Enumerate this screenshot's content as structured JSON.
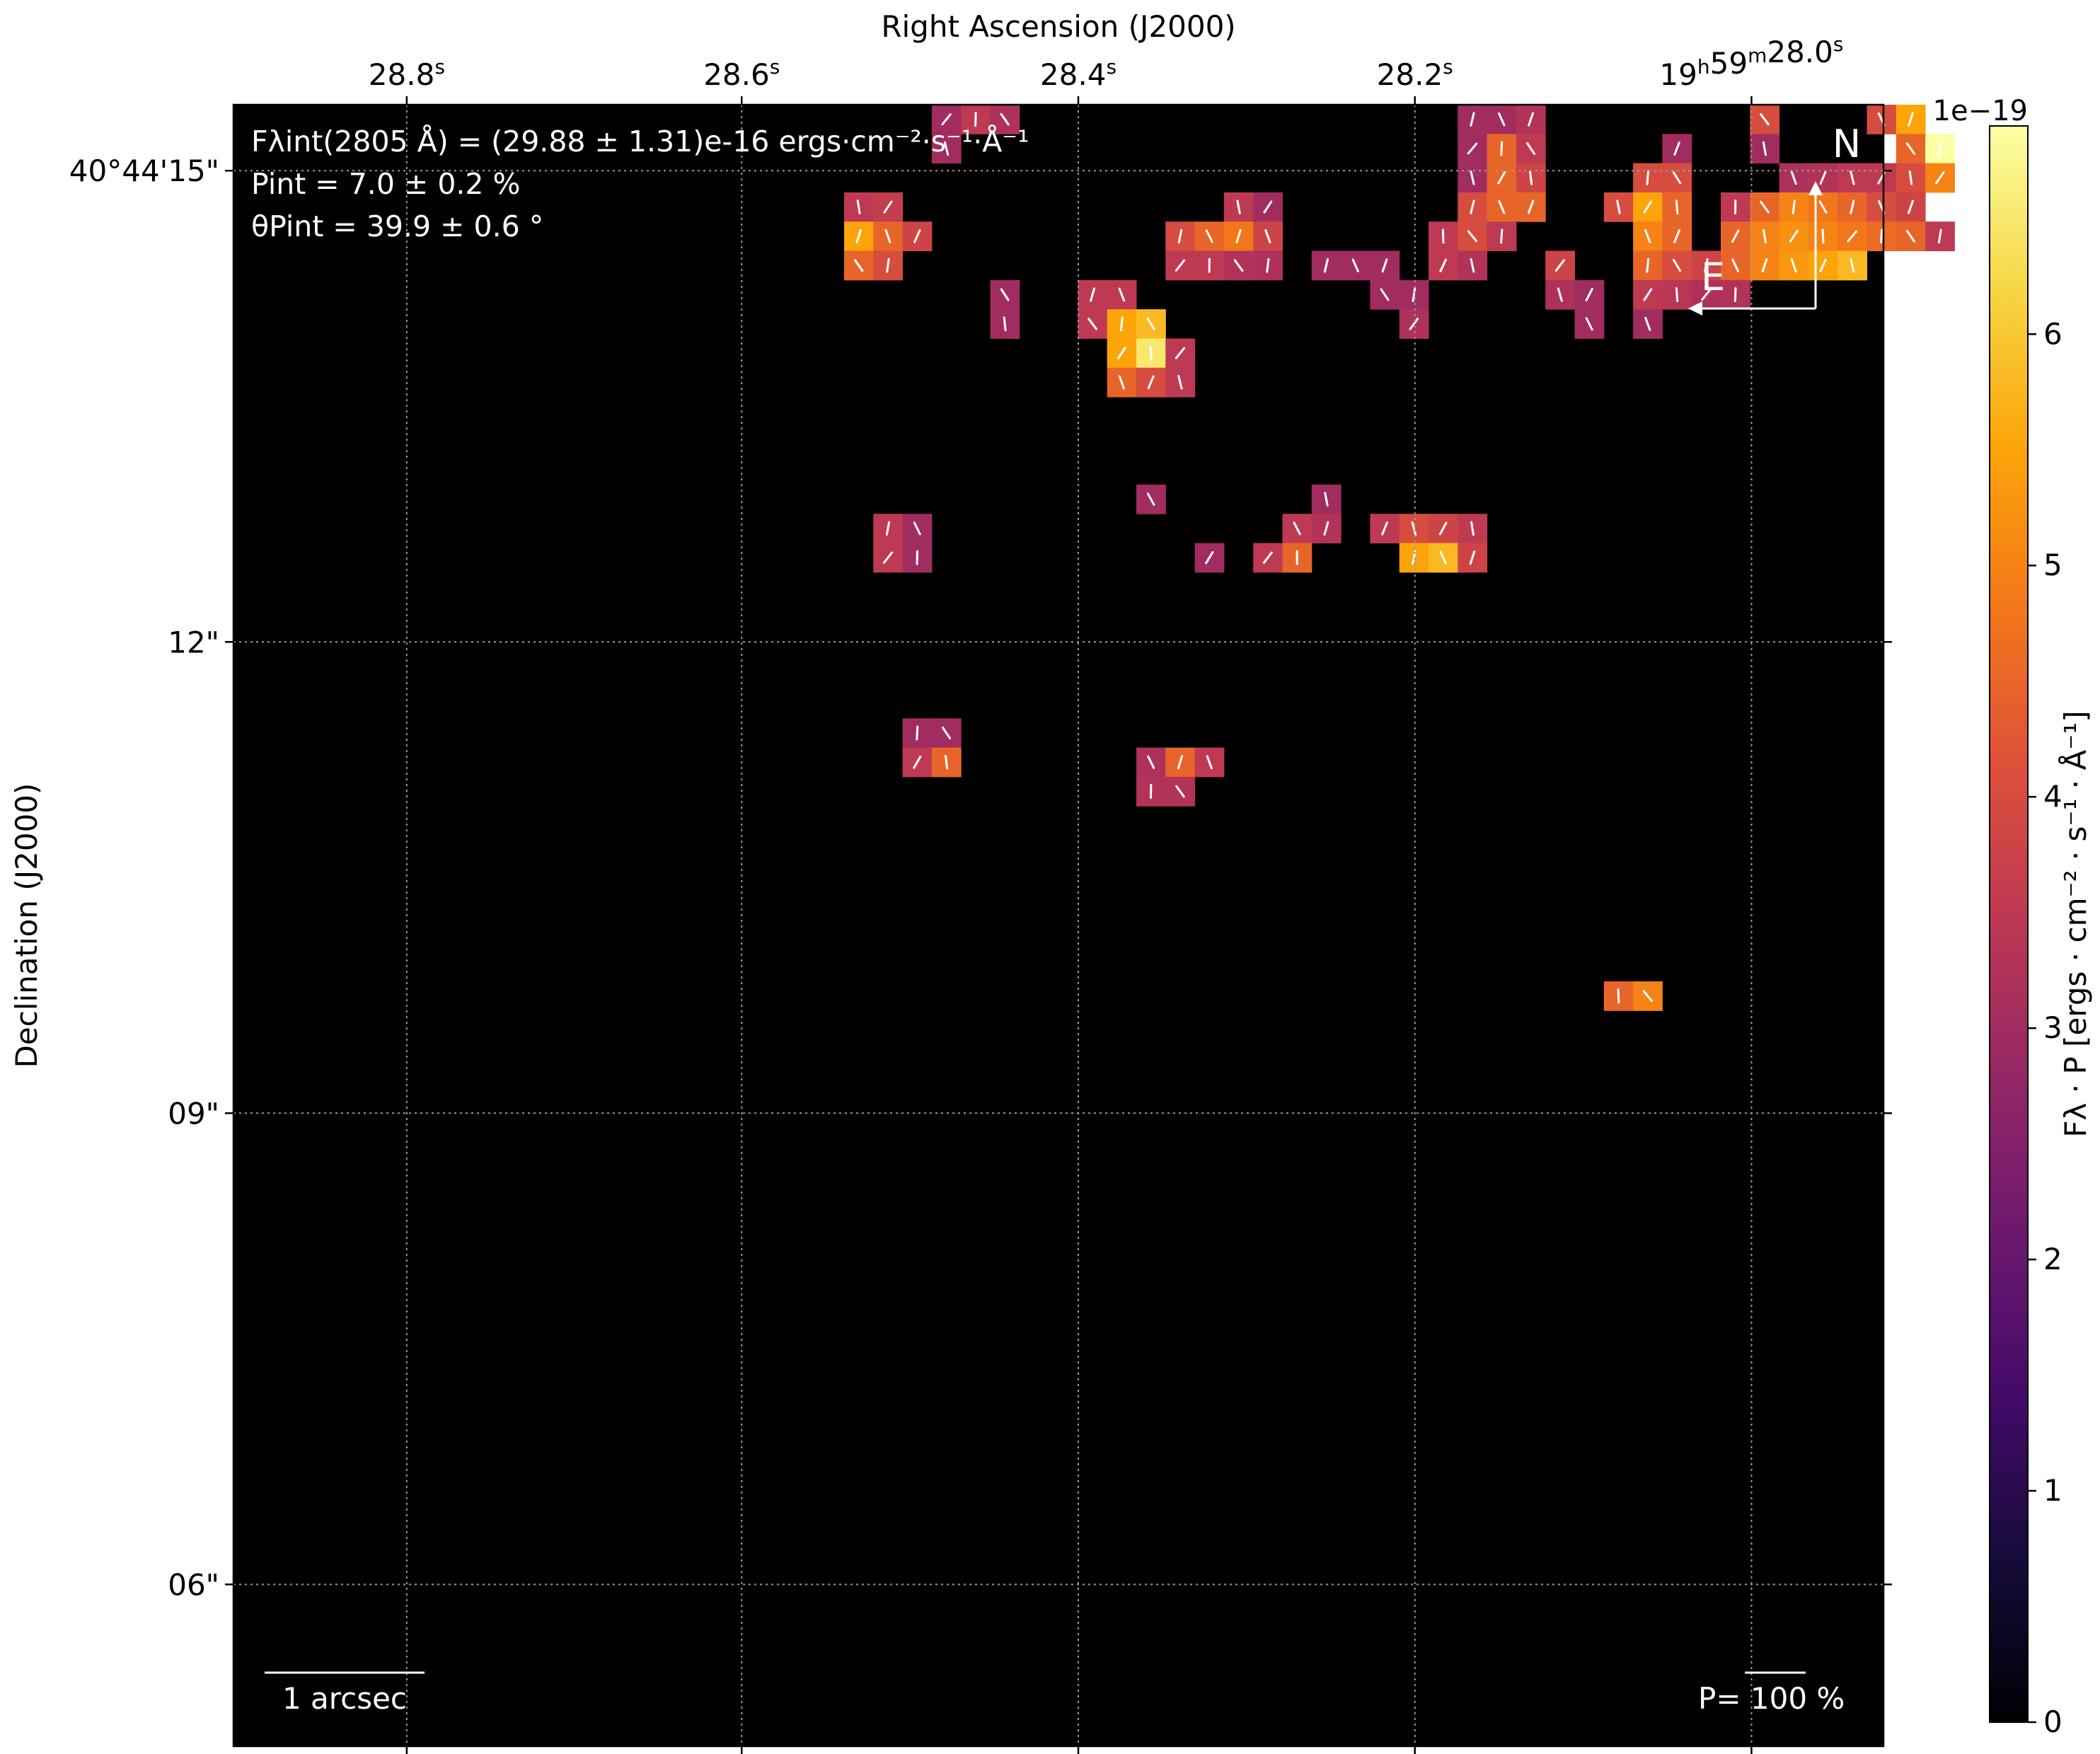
{
  "chart_data": {
    "type": "heatmap",
    "title": "",
    "xlabel": "Right Ascension (J2000)",
    "ylabel": "Declination (J2000)",
    "x_ticks": [
      {
        "pos": 0.105,
        "main": "28.8",
        "sup": "s"
      },
      {
        "pos": 0.308,
        "main": "28.6",
        "sup": "s"
      },
      {
        "pos": 0.512,
        "main": "28.4",
        "sup": "s"
      },
      {
        "pos": 0.716,
        "main": "28.2",
        "sup": "s"
      },
      {
        "pos": 0.92,
        "main": "19",
        "sup": "h",
        "main2": "59",
        "sup2": "m",
        "main3": "28.0",
        "sup3": "s"
      }
    ],
    "y_ticks": [
      {
        "value": 15,
        "label": "40°44'15\""
      },
      {
        "value": 12,
        "label": "12\""
      },
      {
        "value": 9,
        "label": "09\""
      },
      {
        "value": 6,
        "label": "06\""
      }
    ],
    "y_range": [
      4.97,
      15.42
    ],
    "annotation_lines": [
      "Fλint(2805 Å) = (29.88 ± 1.31)e-16 ergs·cm⁻²·s⁻¹·Å⁻¹",
      "Pint = 7.0 ± 0.2 %",
      "θPint = 39.9 ± 0.6 °"
    ],
    "compass": {
      "north": "N",
      "east": "E"
    },
    "scale_bar_label": "1 arcsec",
    "pol_scale_label": "P= 100 %",
    "colorbar": {
      "label": "Fλ · P [ergs · cm⁻² · s⁻¹ · Å⁻¹]",
      "exponent_label": "1e−19",
      "ticks": [
        0,
        1,
        2,
        3,
        4,
        5,
        6
      ],
      "range": [
        0,
        6.9
      ],
      "colormap": "inferno"
    },
    "grid": true,
    "pixels": [
      [
        13,
        0,
        3.0
      ],
      [
        14,
        0,
        3.5
      ],
      [
        15,
        0,
        3.2
      ],
      [
        31,
        0,
        3.0
      ],
      [
        32,
        0,
        3.0
      ],
      [
        33,
        0,
        3.3
      ],
      [
        41,
        0,
        4.0
      ],
      [
        45,
        0,
        4.0
      ],
      [
        46,
        0,
        5.5
      ],
      [
        13,
        1,
        3.0
      ],
      [
        31,
        1,
        3.0
      ],
      [
        32,
        1,
        4.5
      ],
      [
        33,
        1,
        3.5
      ],
      [
        38,
        1,
        3.0
      ],
      [
        41,
        1,
        3.0
      ],
      [
        46,
        1,
        4.5
      ],
      [
        47,
        1,
        6.9
      ],
      [
        31,
        2,
        3.0
      ],
      [
        32,
        2,
        4.5
      ],
      [
        33,
        2,
        3.8
      ],
      [
        37,
        2,
        4.0
      ],
      [
        38,
        2,
        4.0
      ],
      [
        42,
        2,
        3.2
      ],
      [
        43,
        2,
        3.3
      ],
      [
        44,
        2,
        3.5
      ],
      [
        45,
        2,
        3.5
      ],
      [
        46,
        2,
        4.0
      ],
      [
        47,
        2,
        5.0
      ],
      [
        10,
        3,
        3.5
      ],
      [
        11,
        3,
        3.6
      ],
      [
        23,
        3,
        3.5
      ],
      [
        24,
        3,
        3.0
      ],
      [
        31,
        3,
        4.0
      ],
      [
        32,
        3,
        4.5
      ],
      [
        33,
        3,
        4.5
      ],
      [
        36,
        3,
        4.0
      ],
      [
        37,
        3,
        5.5
      ],
      [
        38,
        3,
        4.5
      ],
      [
        40,
        3,
        3.5
      ],
      [
        41,
        3,
        4.5
      ],
      [
        42,
        3,
        5.0
      ],
      [
        43,
        3,
        4.8
      ],
      [
        44,
        3,
        4.5
      ],
      [
        45,
        3,
        4.0
      ],
      [
        46,
        3,
        3.8
      ],
      [
        10,
        4,
        5.5
      ],
      [
        11,
        4,
        4.5
      ],
      [
        12,
        4,
        3.8
      ],
      [
        21,
        4,
        4.0
      ],
      [
        22,
        4,
        4.5
      ],
      [
        23,
        4,
        4.8
      ],
      [
        24,
        4,
        3.8
      ],
      [
        30,
        4,
        3.5
      ],
      [
        31,
        4,
        4.0
      ],
      [
        32,
        4,
        3.5
      ],
      [
        37,
        4,
        5.0
      ],
      [
        38,
        4,
        4.5
      ],
      [
        40,
        4,
        4.5
      ],
      [
        41,
        4,
        5.0
      ],
      [
        42,
        4,
        5.2
      ],
      [
        43,
        4,
        5.0
      ],
      [
        44,
        4,
        4.8
      ],
      [
        45,
        4,
        4.6
      ],
      [
        46,
        4,
        4.5
      ],
      [
        47,
        4,
        3.5
      ],
      [
        10,
        5,
        4.5
      ],
      [
        11,
        5,
        4.0
      ],
      [
        21,
        5,
        3.5
      ],
      [
        22,
        5,
        3.5
      ],
      [
        23,
        5,
        3.3
      ],
      [
        24,
        5,
        3.2
      ],
      [
        26,
        5,
        3.0
      ],
      [
        27,
        5,
        3.0
      ],
      [
        28,
        5,
        3.0
      ],
      [
        30,
        5,
        3.5
      ],
      [
        31,
        5,
        3.3
      ],
      [
        34,
        5,
        3.8
      ],
      [
        37,
        5,
        4.5
      ],
      [
        38,
        5,
        4.0
      ],
      [
        39,
        5,
        3.8
      ],
      [
        40,
        5,
        4.5
      ],
      [
        41,
        5,
        5.0
      ],
      [
        42,
        5,
        5.3
      ],
      [
        43,
        5,
        5.5
      ],
      [
        44,
        5,
        5.8
      ],
      [
        15,
        6,
        3.0
      ],
      [
        18,
        6,
        3.5
      ],
      [
        19,
        6,
        3.5
      ],
      [
        28,
        6,
        3.0
      ],
      [
        29,
        6,
        3.0
      ],
      [
        34,
        6,
        3.2
      ],
      [
        35,
        6,
        3.0
      ],
      [
        37,
        6,
        3.5
      ],
      [
        38,
        6,
        3.4
      ],
      [
        39,
        6,
        3.2
      ],
      [
        40,
        6,
        3.3
      ],
      [
        15,
        7,
        3.0
      ],
      [
        18,
        7,
        3.5
      ],
      [
        19,
        7,
        5.5
      ],
      [
        20,
        7,
        5.8
      ],
      [
        29,
        7,
        3.2
      ],
      [
        35,
        7,
        3.0
      ],
      [
        37,
        7,
        3.0
      ],
      [
        19,
        8,
        5.5
      ],
      [
        20,
        8,
        6.5
      ],
      [
        21,
        8,
        3.5
      ],
      [
        19,
        9,
        4.5
      ],
      [
        20,
        9,
        4.0
      ],
      [
        21,
        9,
        3.5
      ],
      [
        20,
        13,
        3.0
      ],
      [
        26,
        13,
        3.0
      ],
      [
        11,
        14,
        3.5
      ],
      [
        12,
        14,
        3.0
      ],
      [
        25,
        14,
        3.5
      ],
      [
        26,
        14,
        3.3
      ],
      [
        28,
        14,
        3.5
      ],
      [
        29,
        14,
        4.0
      ],
      [
        30,
        14,
        3.8
      ],
      [
        31,
        14,
        3.5
      ],
      [
        11,
        15,
        3.5
      ],
      [
        12,
        15,
        3.0
      ],
      [
        22,
        15,
        3.0
      ],
      [
        24,
        15,
        3.5
      ],
      [
        25,
        15,
        4.5
      ],
      [
        29,
        15,
        5.5
      ],
      [
        30,
        15,
        5.8
      ],
      [
        31,
        15,
        3.8
      ],
      [
        12,
        21,
        3.0
      ],
      [
        13,
        21,
        3.0
      ],
      [
        12,
        22,
        3.5
      ],
      [
        13,
        22,
        4.5
      ],
      [
        20,
        22,
        3.2
      ],
      [
        21,
        22,
        4.5
      ],
      [
        22,
        22,
        3.5
      ],
      [
        20,
        23,
        3.3
      ],
      [
        21,
        23,
        3.3
      ],
      [
        36,
        30,
        4.5
      ],
      [
        37,
        30,
        5.0
      ]
    ]
  }
}
